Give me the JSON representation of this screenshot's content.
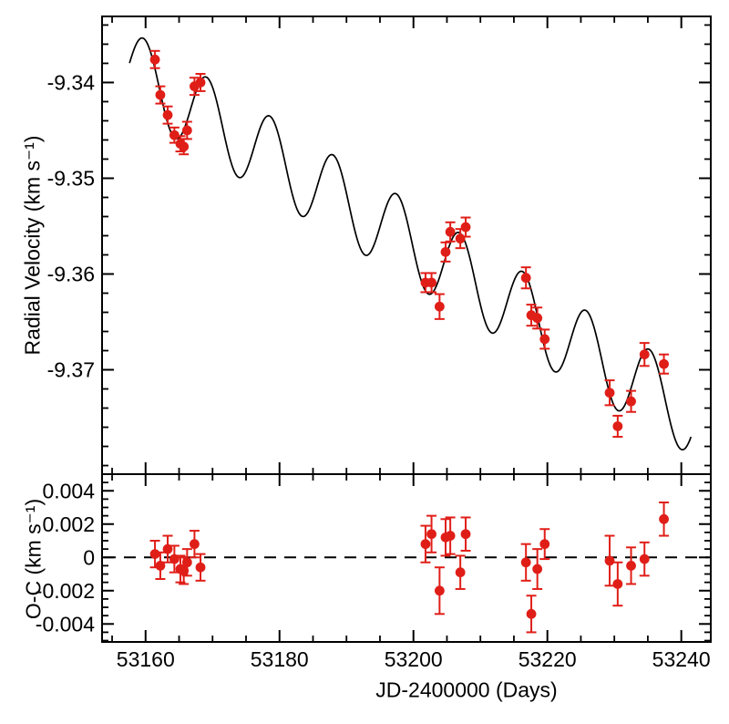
{
  "chart_data": {
    "type": "scatter",
    "description": "Two-panel radial-velocity time series: top panel shows RV measurements with error bars and a fitted model curve (declining linear trend plus ~9.4-day sinusoid); bottom panel shows observed-minus-computed residuals around a dashed zero line.",
    "xlabel": "JD-2400000 (Days)",
    "xlim": [
      53153.5,
      53244.4
    ],
    "xticks": [
      {
        "value": 53160,
        "label": "53160"
      },
      {
        "value": 53180,
        "label": "53180"
      },
      {
        "value": 53200,
        "label": "53200"
      },
      {
        "value": 53220,
        "label": "53220"
      },
      {
        "value": 53240,
        "label": "53240"
      }
    ],
    "x_minor_step": 5,
    "marker_color": "#e01e18",
    "curve_color": "#000000",
    "frame_color": "#000000",
    "top_panel": {
      "ylabel": "Radial Velocity (km s⁻¹)",
      "ylim": [
        -9.3809,
        -9.3331
      ],
      "yticks": [
        {
          "value": -9.34,
          "label": "-9.34"
        },
        {
          "value": -9.35,
          "label": "-9.35"
        },
        {
          "value": -9.36,
          "label": "-9.36"
        },
        {
          "value": -9.37,
          "label": "-9.37"
        }
      ],
      "y_minor_step": 0.002,
      "model_curve": {
        "form": "rv(t) = rv_at_ref + slope*(t - t_ref) + amplitude*cos(2*pi*(t - t_ref)/period)",
        "t_ref": 53159.7,
        "rv_at_ref": -9.3396,
        "slope_km_s_per_day": -0.00043,
        "amplitude_km_s": 0.0042,
        "period_days": 9.44,
        "t_start": 53157.6,
        "t_end": 53241.6
      }
    },
    "bottom_panel": {
      "ylabel": "O-C (km s⁻¹)",
      "ylim": [
        -0.00508,
        0.005
      ],
      "yticks": [
        {
          "value": 0.004,
          "label": "0.004"
        },
        {
          "value": 0.002,
          "label": "0.002"
        },
        {
          "value": 0,
          "label": "0"
        },
        {
          "value": -0.002,
          "label": "-0.002"
        },
        {
          "value": -0.004,
          "label": "-0.004"
        }
      ],
      "y_minor_step": 0.0005,
      "zero_line": {
        "value": 0,
        "style": "dashed"
      }
    },
    "points": [
      {
        "jd": 53161.4,
        "rv": -9.3376,
        "rv_err": 0.0009,
        "oc": 0.0002,
        "oc_err": 0.0008
      },
      {
        "jd": 53162.2,
        "rv": -9.3413,
        "rv_err": 0.0009,
        "oc": -0.0005,
        "oc_err": 0.0008
      },
      {
        "jd": 53163.3,
        "rv": -9.3434,
        "rv_err": 0.0009,
        "oc": 0.0005,
        "oc_err": 0.0008
      },
      {
        "jd": 53164.3,
        "rv": -9.3455,
        "rv_err": 0.0008,
        "oc": -0.0001,
        "oc_err": 0.0008
      },
      {
        "jd": 53165.2,
        "rv": -9.3464,
        "rv_err": 0.0008,
        "oc": -0.0007,
        "oc_err": 0.0008
      },
      {
        "jd": 53165.7,
        "rv": -9.3467,
        "rv_err": 0.0008,
        "oc": -0.0008,
        "oc_err": 0.0008
      },
      {
        "jd": 53166.2,
        "rv": -9.345,
        "rv_err": 0.0009,
        "oc": -0.0003,
        "oc_err": 0.0008
      },
      {
        "jd": 53167.3,
        "rv": -9.3404,
        "rv_err": 0.0009,
        "oc": 0.0008,
        "oc_err": 0.0008
      },
      {
        "jd": 53168.2,
        "rv": -9.34,
        "rv_err": 0.0009,
        "oc": -0.0006,
        "oc_err": 0.0008
      },
      {
        "jd": 53201.8,
        "rv": -9.3609,
        "rv_err": 0.001,
        "oc": 0.0008,
        "oc_err": 0.0011
      },
      {
        "jd": 53202.7,
        "rv": -9.3609,
        "rv_err": 0.001,
        "oc": 0.0014,
        "oc_err": 0.0011
      },
      {
        "jd": 53203.9,
        "rv": -9.3634,
        "rv_err": 0.0013,
        "oc": -0.002,
        "oc_err": 0.0014
      },
      {
        "jd": 53204.8,
        "rv": -9.3577,
        "rv_err": 0.001,
        "oc": 0.0012,
        "oc_err": 0.0011
      },
      {
        "jd": 53205.5,
        "rv": -9.3556,
        "rv_err": 0.001,
        "oc": 0.0013,
        "oc_err": 0.0011
      },
      {
        "jd": 53207.0,
        "rv": -9.3563,
        "rv_err": 0.001,
        "oc": -0.0009,
        "oc_err": 0.001
      },
      {
        "jd": 53207.8,
        "rv": -9.3551,
        "rv_err": 0.001,
        "oc": 0.0014,
        "oc_err": 0.001
      },
      {
        "jd": 53216.8,
        "rv": -9.3604,
        "rv_err": 0.0011,
        "oc": -0.0003,
        "oc_err": 0.0011
      },
      {
        "jd": 53217.6,
        "rv": -9.3643,
        "rv_err": 0.0011,
        "oc": -0.0034,
        "oc_err": 0.0011
      },
      {
        "jd": 53218.5,
        "rv": -9.3646,
        "rv_err": 0.0011,
        "oc": -0.0007,
        "oc_err": 0.0012
      },
      {
        "jd": 53219.6,
        "rv": -9.3668,
        "rv_err": 0.001,
        "oc": 0.0008,
        "oc_err": 0.0009
      },
      {
        "jd": 53229.3,
        "rv": -9.3724,
        "rv_err": 0.0013,
        "oc": -0.0002,
        "oc_err": 0.0015
      },
      {
        "jd": 53230.5,
        "rv": -9.3759,
        "rv_err": 0.0011,
        "oc": -0.0016,
        "oc_err": 0.0013
      },
      {
        "jd": 53232.5,
        "rv": -9.3733,
        "rv_err": 0.0011,
        "oc": -0.0005,
        "oc_err": 0.0011
      },
      {
        "jd": 53234.5,
        "rv": -9.3684,
        "rv_err": 0.0012,
        "oc": -0.0001,
        "oc_err": 0.001
      },
      {
        "jd": 53237.4,
        "rv": -9.3694,
        "rv_err": 0.001,
        "oc": 0.0023,
        "oc_err": 0.001
      }
    ]
  }
}
